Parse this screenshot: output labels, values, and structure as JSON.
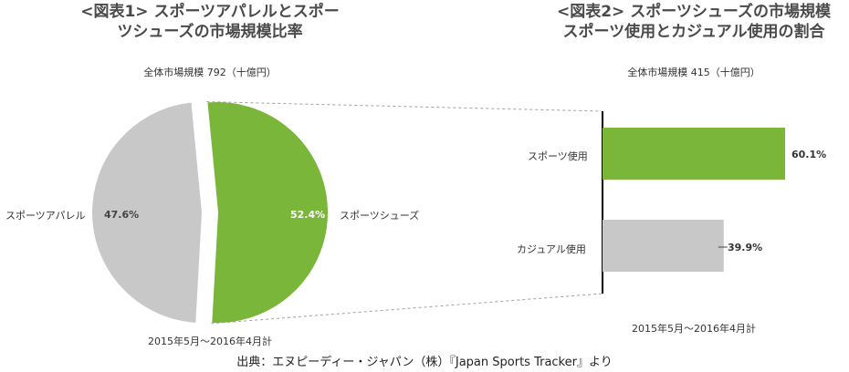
{
  "chart_data": [
    {
      "type": "pie",
      "title": "<図表1> スポーツアパレルとスポーツシューズの市場規模比率",
      "total_label": "全体市場規模 792（十億円）",
      "period": "2015年5月～2016年4月計",
      "categories": [
        "スポーツアパレル",
        "スポーツシューズ"
      ],
      "values": [
        47.6,
        52.4
      ],
      "value_labels": [
        "47.6%",
        "52.4%"
      ],
      "colors": [
        "#c8c8c8",
        "#7ab63a"
      ]
    },
    {
      "type": "bar",
      "orientation": "horizontal",
      "title": "<図表2> スポーツシューズの市場規模スポーツ使用とカジュアル使用の割合",
      "total_label": "全体市場規模 415（十億円）",
      "period": "2015年5月～2016年4月計",
      "categories": [
        "スポーツ使用",
        "カジュアル使用"
      ],
      "values": [
        60.1,
        39.9
      ],
      "value_labels": [
        "60.1%",
        "39.9%"
      ],
      "colors": [
        "#7ab63a",
        "#c8c8c8"
      ]
    }
  ],
  "source": "出典：エヌピーディー・ジャパン（株）『Japan Sports Tracker』より",
  "titles": {
    "fig1_line1": "<図表1> スポーツアパレルとスポー",
    "fig1_line2": "ツシューズの市場規模比率",
    "fig2_line1": "<図表2> スポーツシューズの市場規模",
    "fig2_line2": "スポーツ使用とカジュアル使用の割合"
  }
}
